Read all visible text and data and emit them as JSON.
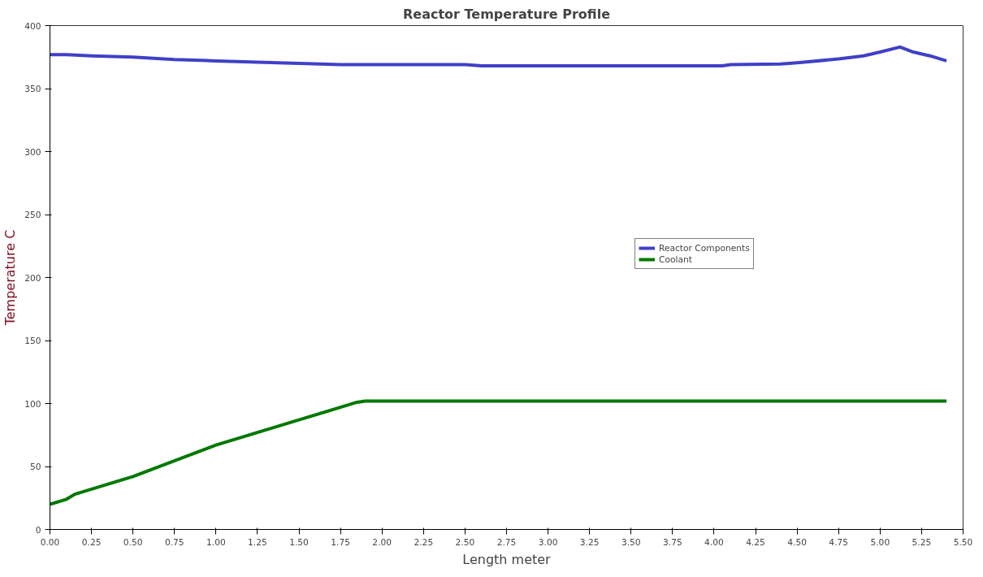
{
  "chart_data": {
    "type": "line",
    "title": "Reactor Temperature Profile",
    "xlabel": "Length meter",
    "ylabel": "Temperature C",
    "xlim": [
      0,
      5.5
    ],
    "ylim": [
      0,
      400
    ],
    "xticks": [
      {
        "value": 0,
        "label": "0.00"
      },
      {
        "value": 0.25,
        "label": "0.25"
      },
      {
        "value": 0.5,
        "label": "0.50"
      },
      {
        "value": 0.75,
        "label": "0.75"
      },
      {
        "value": 1,
        "label": "1.00"
      },
      {
        "value": 1.25,
        "label": "1.25"
      },
      {
        "value": 1.5,
        "label": "1.50"
      },
      {
        "value": 1.75,
        "label": "1.75"
      },
      {
        "value": 2,
        "label": "2.00"
      },
      {
        "value": 2.25,
        "label": "2.25"
      },
      {
        "value": 2.5,
        "label": "2.50"
      },
      {
        "value": 2.75,
        "label": "2.75"
      },
      {
        "value": 3,
        "label": "3.00"
      },
      {
        "value": 3.25,
        "label": "3.25"
      },
      {
        "value": 3.5,
        "label": "3.50"
      },
      {
        "value": 3.75,
        "label": "3.75"
      },
      {
        "value": 4,
        "label": "4.00"
      },
      {
        "value": 4.25,
        "label": "4.25"
      },
      {
        "value": 4.5,
        "label": "4.50"
      },
      {
        "value": 4.75,
        "label": "4.75"
      },
      {
        "value": 5,
        "label": "5.00"
      },
      {
        "value": 5.25,
        "label": "5.25"
      },
      {
        "value": 5.5,
        "label": "5.50"
      }
    ],
    "yticks": [
      0,
      50,
      100,
      150,
      200,
      250,
      300,
      350,
      400
    ],
    "grid": false,
    "legend": "right",
    "line_style": "solid",
    "series": [
      {
        "name": "Reactor Components",
        "color": "#4040c8",
        "x": [
          0,
          0.1,
          0.25,
          0.5,
          0.75,
          1.0,
          1.25,
          1.5,
          1.75,
          2.5,
          2.6,
          4.05,
          4.1,
          4.4,
          4.5,
          4.75,
          4.9,
          5.0,
          5.12,
          5.2,
          5.3,
          5.4
        ],
        "values": [
          377,
          377,
          376,
          375,
          373,
          372,
          371,
          370,
          369,
          369,
          368,
          368,
          369,
          369.5,
          370.5,
          373.5,
          376,
          379,
          383,
          379,
          376,
          372
        ]
      },
      {
        "name": "Coolant",
        "color": "#007800",
        "x": [
          0,
          0.1,
          0.15,
          0.5,
          1.0,
          1.5,
          1.75,
          1.85,
          1.9,
          5.4
        ],
        "values": [
          20,
          24,
          28,
          42,
          67,
          87,
          97,
          101,
          102,
          102
        ]
      }
    ]
  }
}
